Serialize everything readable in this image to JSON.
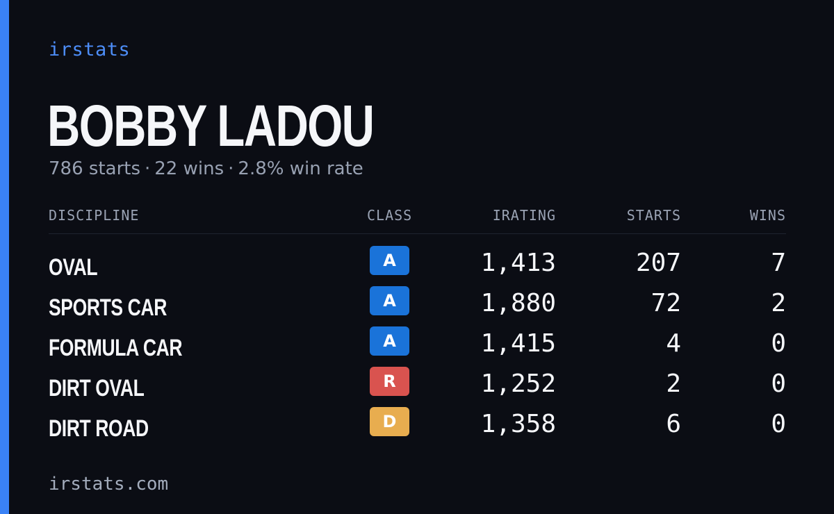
{
  "brand": "irstats",
  "driver": {
    "name": "BOBBY LADOU",
    "starts_text": "786 starts",
    "wins_text": "22 wins",
    "winrate_text": "2.8% win rate",
    "separator": "·"
  },
  "table": {
    "headers": {
      "discipline": "DISCIPLINE",
      "class": "CLASS",
      "irating": "IRATING",
      "starts": "STARTS",
      "wins": "WINS"
    },
    "rows": [
      {
        "discipline": "OVAL",
        "class": "A",
        "class_color": "#1a73d9",
        "irating": "1,413",
        "starts": "207",
        "wins": "7"
      },
      {
        "discipline": "SPORTS CAR",
        "class": "A",
        "class_color": "#1a73d9",
        "irating": "1,880",
        "starts": "72",
        "wins": "2"
      },
      {
        "discipline": "FORMULA CAR",
        "class": "A",
        "class_color": "#1a73d9",
        "irating": "1,415",
        "starts": "4",
        "wins": "0"
      },
      {
        "discipline": "DIRT OVAL",
        "class": "R",
        "class_color": "#d9534f",
        "irating": "1,252",
        "starts": "2",
        "wins": "0"
      },
      {
        "discipline": "DIRT ROAD",
        "class": "D",
        "class_color": "#e8ad4f",
        "irating": "1,358",
        "starts": "6",
        "wins": "0"
      }
    ]
  },
  "footer": "irstats.com",
  "colors": {
    "accent": "#3a82f6",
    "background": "#0b0d14"
  }
}
